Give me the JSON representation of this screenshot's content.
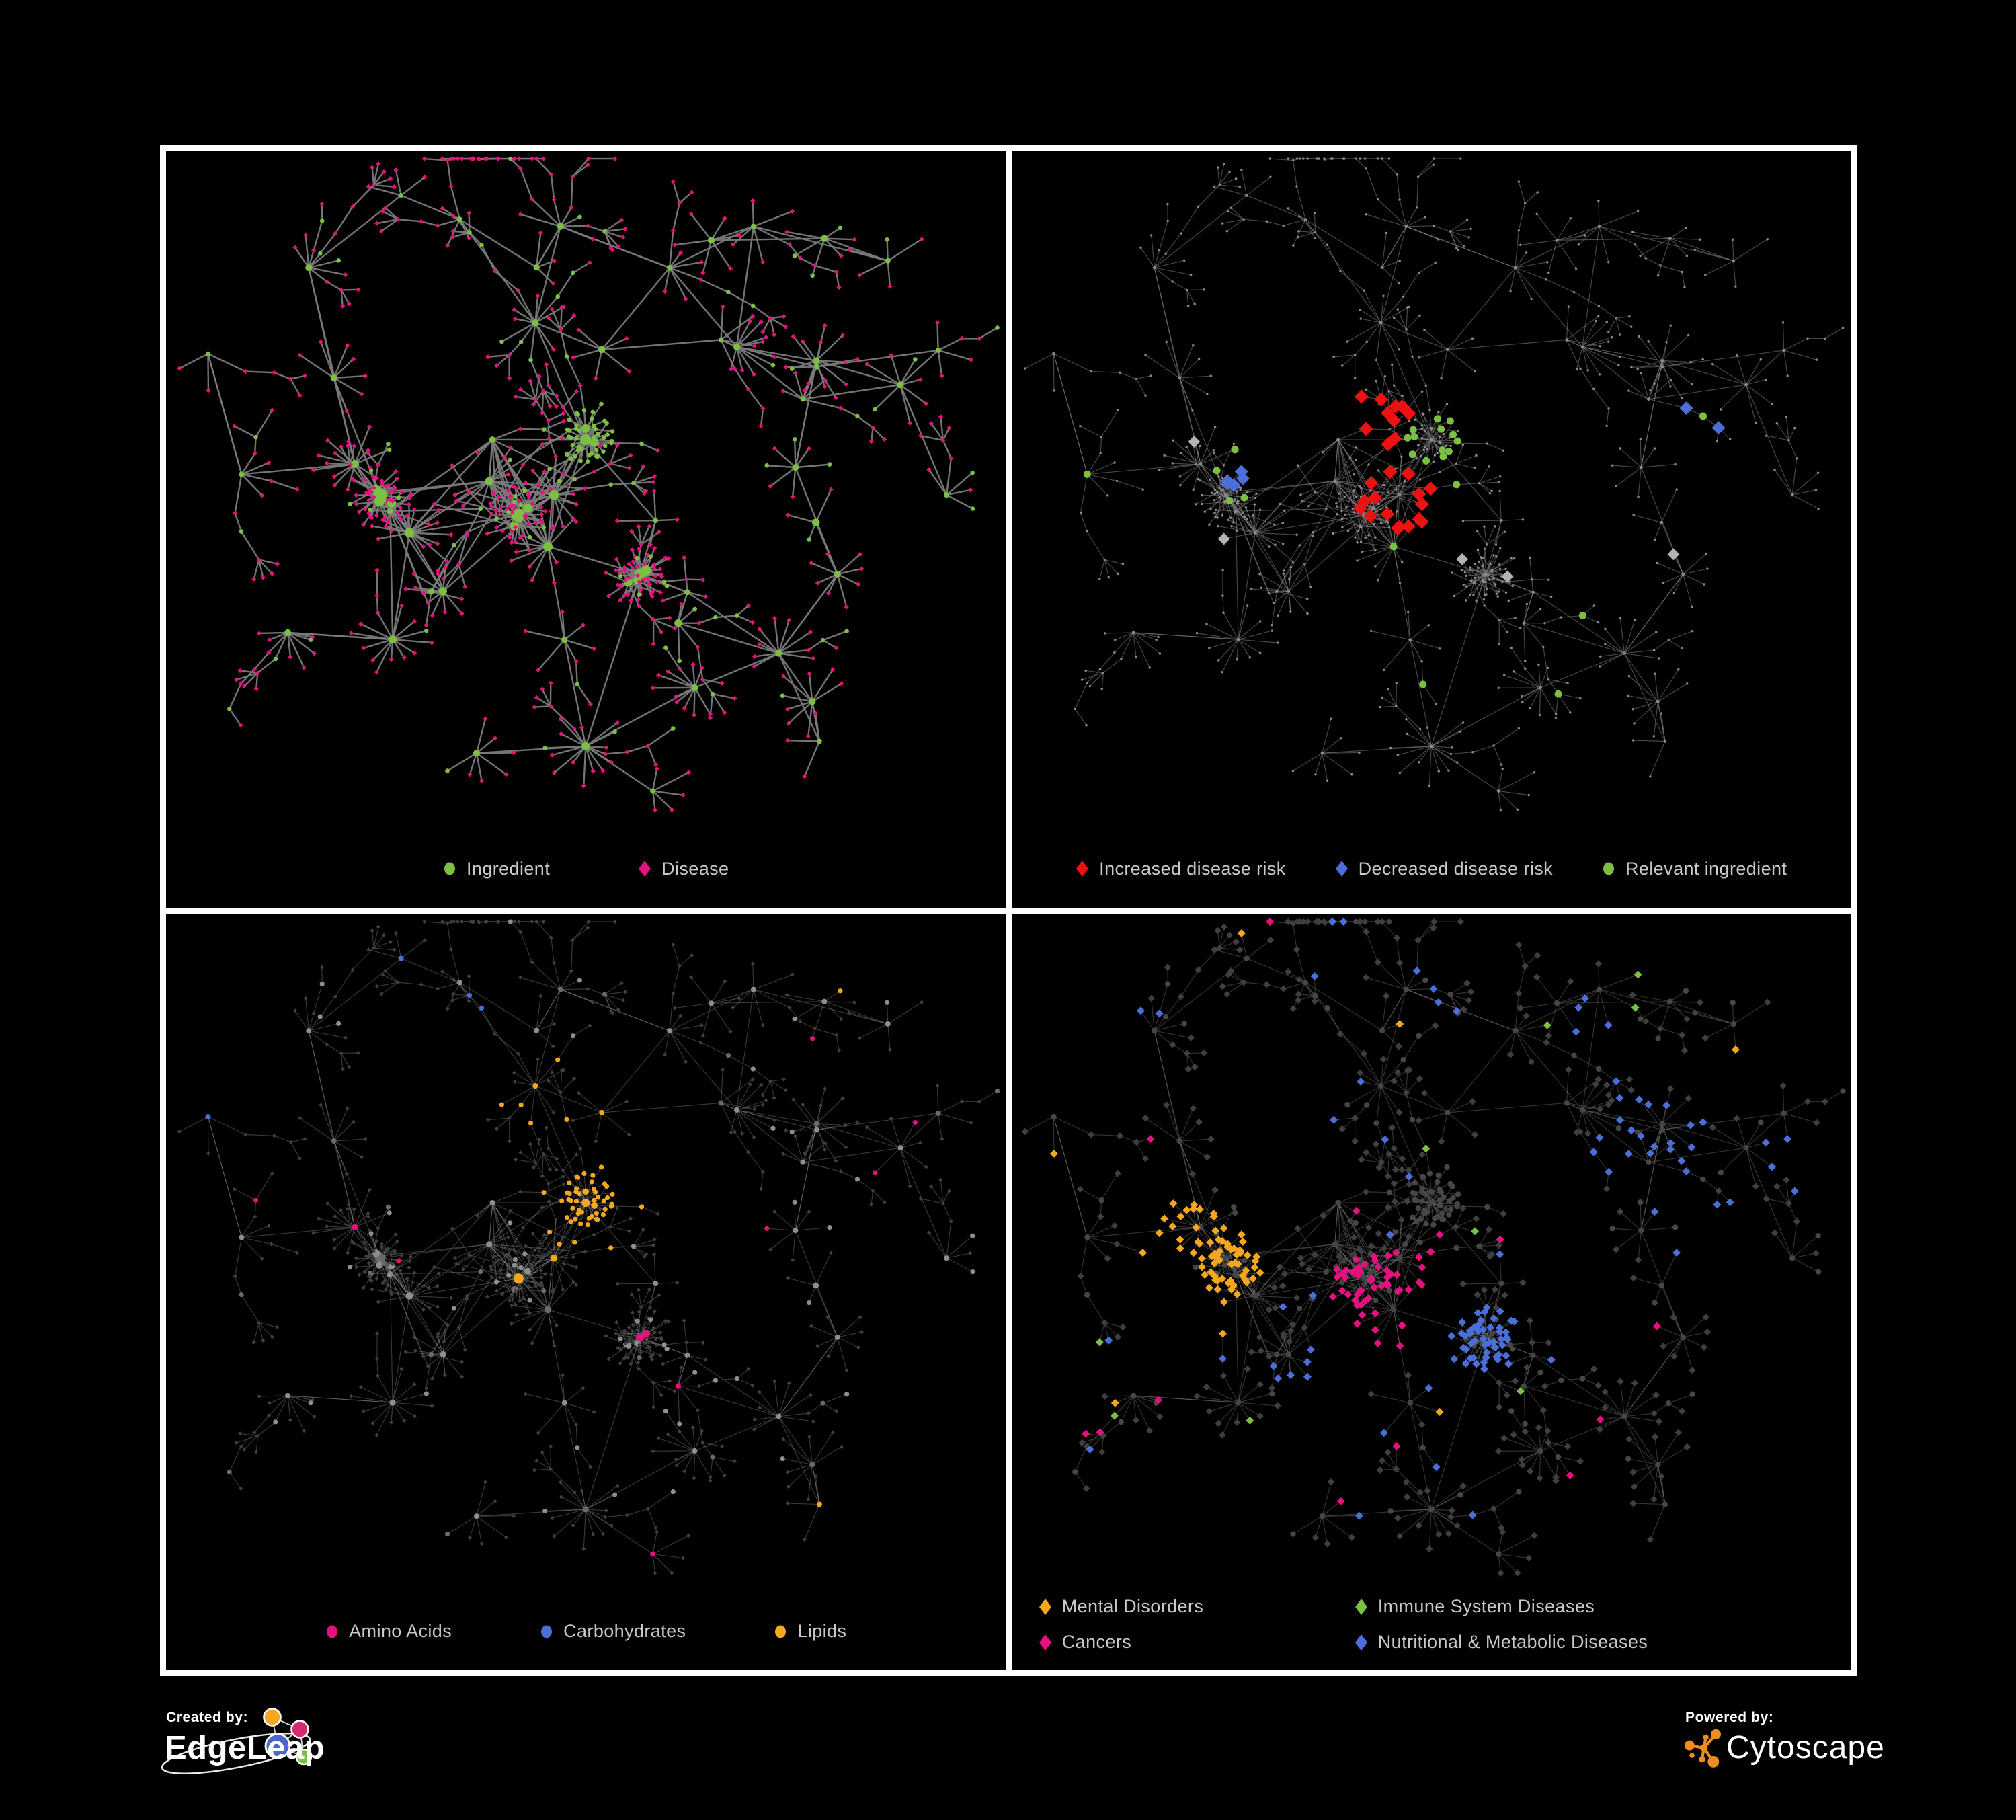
{
  "figure": {
    "background": "#000000",
    "frame_color": "#ffffff"
  },
  "colors": {
    "green": "#7CC043",
    "pink": "#E5117F",
    "red": "#EE1111",
    "blue": "#4A6FD9",
    "amber": "#F5A81E",
    "silver": "#B3B3B3",
    "gray_circle": "#8F8F8F",
    "base_dot": "#8C8C8C",
    "dark_diamond": "#3F3F3F",
    "dark_circle": "#464646",
    "edge_gray": "#7A7A7A",
    "legend_text": "#C9C9C9"
  },
  "panels": [
    {
      "id": "ingredient-disease",
      "legend": [
        {
          "label": "Ingredient",
          "shape": "circle",
          "color": "#7CC043"
        },
        {
          "label": "Disease",
          "shape": "diamond",
          "color": "#E5117F"
        }
      ]
    },
    {
      "id": "disease-risk",
      "legend": [
        {
          "label": "Increased disease risk",
          "shape": "diamond",
          "color": "#EE1111"
        },
        {
          "label": "Decreased disease risk",
          "shape": "diamond",
          "color": "#4A6FD9"
        },
        {
          "label": "Relevant ingredient",
          "shape": "circle",
          "color": "#7CC043"
        }
      ]
    },
    {
      "id": "ingredient-classes",
      "legend": [
        {
          "label": "Amino Acids",
          "shape": "circle",
          "color": "#E5117F"
        },
        {
          "label": "Carbohydrates",
          "shape": "circle",
          "color": "#4A6FD9"
        },
        {
          "label": "Lipids",
          "shape": "circle",
          "color": "#F5A81E"
        }
      ]
    },
    {
      "id": "disease-classes",
      "legend": [
        {
          "label": "Mental Disorders",
          "shape": "diamond",
          "color": "#F5A81E"
        },
        {
          "label": "Immune System Diseases",
          "shape": "diamond",
          "color": "#7CC043"
        },
        {
          "label": "Cancers",
          "shape": "diamond",
          "color": "#E5117F"
        },
        {
          "label": "Nutritional & Metabolic Diseases",
          "shape": "diamond",
          "color": "#4A6FD9"
        }
      ]
    }
  ],
  "branding": {
    "created_by": {
      "label": "Created by:",
      "name": "EdgeLeap"
    },
    "powered_by": {
      "label": "Powered by:",
      "name": "Cytoscape"
    }
  }
}
